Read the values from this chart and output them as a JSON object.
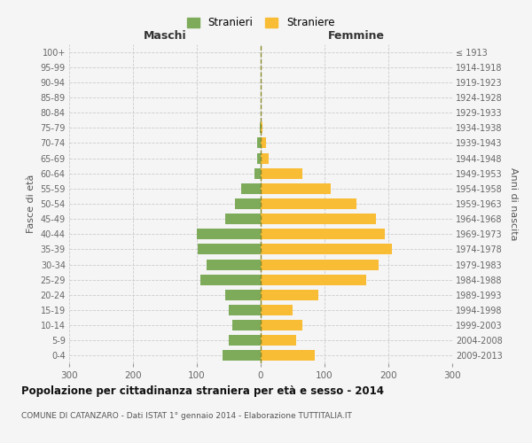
{
  "age_groups": [
    "0-4",
    "5-9",
    "10-14",
    "15-19",
    "20-24",
    "25-29",
    "30-34",
    "35-39",
    "40-44",
    "45-49",
    "50-54",
    "55-59",
    "60-64",
    "65-69",
    "70-74",
    "75-79",
    "80-84",
    "85-89",
    "90-94",
    "95-99",
    "100+"
  ],
  "birth_years": [
    "2009-2013",
    "2004-2008",
    "1999-2003",
    "1994-1998",
    "1989-1993",
    "1984-1988",
    "1979-1983",
    "1974-1978",
    "1969-1973",
    "1964-1968",
    "1959-1963",
    "1954-1958",
    "1949-1953",
    "1944-1948",
    "1939-1943",
    "1934-1938",
    "1929-1933",
    "1924-1928",
    "1919-1923",
    "1914-1918",
    "≤ 1913"
  ],
  "males": [
    60,
    50,
    45,
    50,
    55,
    95,
    85,
    98,
    100,
    55,
    40,
    30,
    10,
    6,
    5,
    2,
    0,
    0,
    0,
    0,
    0
  ],
  "females": [
    85,
    55,
    65,
    50,
    90,
    165,
    185,
    205,
    195,
    180,
    150,
    110,
    65,
    12,
    8,
    3,
    0,
    0,
    0,
    0,
    0
  ],
  "male_color": "#7dab5a",
  "female_color": "#f9bc35",
  "background_color": "#f5f5f5",
  "grid_color": "#cccccc",
  "center_line_color": "#8a8a2a",
  "title": "Popolazione per cittadinanza straniera per età e sesso - 2014",
  "subtitle": "COMUNE DI CATANZARO - Dati ISTAT 1° gennaio 2014 - Elaborazione TUTTITALIA.IT",
  "legend_males": "Stranieri",
  "legend_females": "Straniere",
  "xlabel_left": "Maschi",
  "xlabel_right": "Femmine",
  "ylabel_left": "Fasce di età",
  "ylabel_right": "Anni di nascita",
  "xlim": 300
}
